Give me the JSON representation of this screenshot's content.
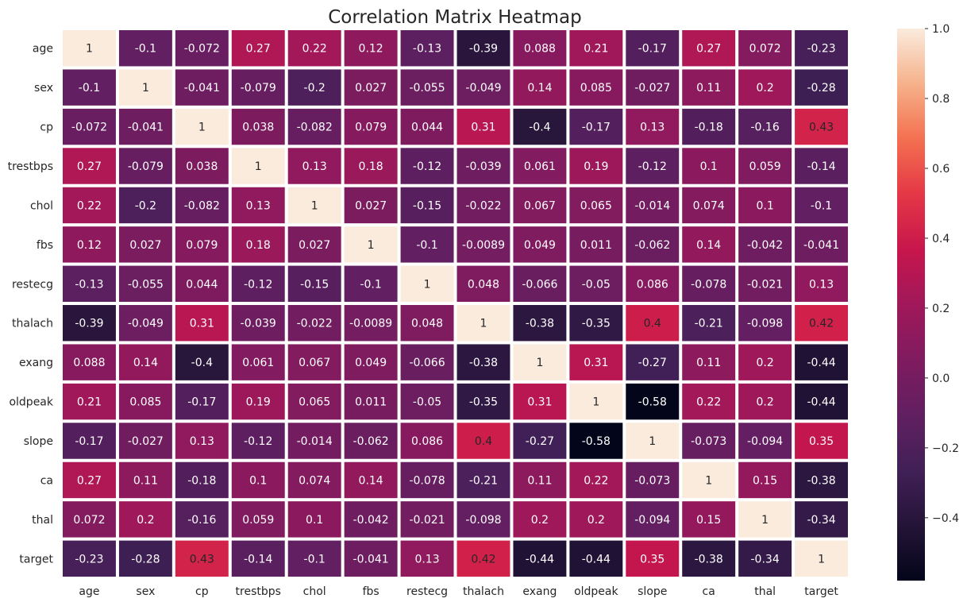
{
  "chart_data": {
    "type": "heatmap",
    "title": "Correlation Matrix Heatmap",
    "variables": [
      "age",
      "sex",
      "cp",
      "trestbps",
      "chol",
      "fbs",
      "restecg",
      "thalach",
      "exang",
      "oldpeak",
      "slope",
      "ca",
      "thal",
      "target"
    ],
    "values": [
      [
        "1",
        "-0.1",
        "-0.072",
        "0.27",
        "0.22",
        "0.12",
        "-0.13",
        "-0.39",
        "0.088",
        "0.21",
        "-0.17",
        "0.27",
        "0.072",
        "-0.23"
      ],
      [
        "-0.1",
        "1",
        "-0.041",
        "-0.079",
        "-0.2",
        "0.027",
        "-0.055",
        "-0.049",
        "0.14",
        "0.085",
        "-0.027",
        "0.11",
        "0.2",
        "-0.28"
      ],
      [
        "-0.072",
        "-0.041",
        "1",
        "0.038",
        "-0.082",
        "0.079",
        "0.044",
        "0.31",
        "-0.4",
        "-0.17",
        "0.13",
        "-0.18",
        "-0.16",
        "0.43"
      ],
      [
        "0.27",
        "-0.079",
        "0.038",
        "1",
        "0.13",
        "0.18",
        "-0.12",
        "-0.039",
        "0.061",
        "0.19",
        "-0.12",
        "0.1",
        "0.059",
        "-0.14"
      ],
      [
        "0.22",
        "-0.2",
        "-0.082",
        "0.13",
        "1",
        "0.027",
        "-0.15",
        "-0.022",
        "0.067",
        "0.065",
        "-0.014",
        "0.074",
        "0.1",
        "-0.1"
      ],
      [
        "0.12",
        "0.027",
        "0.079",
        "0.18",
        "0.027",
        "1",
        "-0.1",
        "-0.0089",
        "0.049",
        "0.011",
        "-0.062",
        "0.14",
        "-0.042",
        "-0.041"
      ],
      [
        "-0.13",
        "-0.055",
        "0.044",
        "-0.12",
        "-0.15",
        "-0.1",
        "1",
        "0.048",
        "-0.066",
        "-0.05",
        "0.086",
        "-0.078",
        "-0.021",
        "0.13"
      ],
      [
        "-0.39",
        "-0.049",
        "0.31",
        "-0.039",
        "-0.022",
        "-0.0089",
        "0.048",
        "1",
        "-0.38",
        "-0.35",
        "0.4",
        "-0.21",
        "-0.098",
        "0.42"
      ],
      [
        "0.088",
        "0.14",
        "-0.4",
        "0.061",
        "0.067",
        "0.049",
        "-0.066",
        "-0.38",
        "1",
        "0.31",
        "-0.27",
        "0.11",
        "0.2",
        "-0.44"
      ],
      [
        "0.21",
        "0.085",
        "-0.17",
        "0.19",
        "0.065",
        "0.011",
        "-0.05",
        "-0.35",
        "0.31",
        "1",
        "-0.58",
        "0.22",
        "0.2",
        "-0.44"
      ],
      [
        "-0.17",
        "-0.027",
        "0.13",
        "-0.12",
        "-0.014",
        "-0.062",
        "0.086",
        "0.4",
        "-0.27",
        "-0.58",
        "1",
        "-0.073",
        "-0.094",
        "0.35"
      ],
      [
        "0.27",
        "0.11",
        "-0.18",
        "0.1",
        "0.074",
        "0.14",
        "-0.078",
        "-0.21",
        "0.11",
        "0.22",
        "-0.073",
        "1",
        "0.15",
        "-0.38"
      ],
      [
        "0.072",
        "0.2",
        "-0.16",
        "0.059",
        "0.1",
        "-0.042",
        "-0.021",
        "-0.098",
        "0.2",
        "0.2",
        "-0.094",
        "0.15",
        "1",
        "-0.34"
      ],
      [
        "-0.23",
        "-0.28",
        "0.43",
        "-0.14",
        "-0.1",
        "-0.041",
        "0.13",
        "0.42",
        "-0.44",
        "-0.44",
        "0.35",
        "-0.38",
        "-0.34",
        "1"
      ]
    ],
    "colorbar": {
      "range": [
        -0.58,
        1.0
      ],
      "ticks": [
        -0.4,
        -0.2,
        0.0,
        0.2,
        0.4,
        0.6,
        0.8,
        1.0
      ],
      "tick_labels": [
        "−0.4",
        "−0.2",
        "0.0",
        "0.2",
        "0.4",
        "0.6",
        "0.8",
        "1.0"
      ],
      "colormap": "rocket",
      "orientation": "vertical",
      "placement": "right"
    },
    "grid_lines": "white",
    "legend": "none"
  }
}
